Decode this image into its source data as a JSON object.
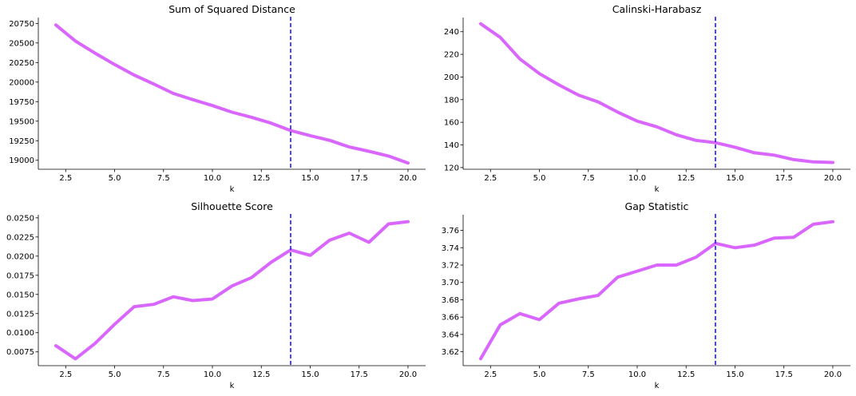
{
  "style": {
    "line_color": "#d966ff",
    "marker_line_color": "#1a1aff"
  },
  "chart_data": [
    {
      "type": "line",
      "title": "Sum of Squared Distance",
      "xlabel": "k",
      "ylabel": "",
      "x": [
        2,
        3,
        4,
        5,
        6,
        7,
        8,
        9,
        10,
        11,
        12,
        13,
        14,
        15,
        16,
        17,
        18,
        19,
        20
      ],
      "series": [
        {
          "values": [
            20730,
            20525,
            20370,
            20225,
            20090,
            19975,
            19855,
            19775,
            19700,
            19615,
            19550,
            19475,
            19380,
            19315,
            19255,
            19170,
            19115,
            19055,
            18965
          ]
        }
      ],
      "xlim": [
        1.1,
        20.9
      ],
      "ylim": [
        18885,
        20825
      ],
      "xticks": [
        2.5,
        5.0,
        7.5,
        10.0,
        12.5,
        15.0,
        17.5,
        20.0
      ],
      "xtick_labels": [
        "2.5",
        "5.0",
        "7.5",
        "10.0",
        "12.5",
        "15.0",
        "17.5",
        "20.0"
      ],
      "yticks": [
        19000,
        19250,
        19500,
        19750,
        20000,
        20250,
        20500,
        20750
      ],
      "ytick_labels": [
        "19000",
        "19250",
        "19500",
        "19750",
        "20000",
        "20250",
        "20500",
        "20750"
      ],
      "vline_x": 14,
      "grid": false
    },
    {
      "type": "line",
      "title": "Calinski-Harabasz",
      "xlabel": "k",
      "ylabel": "",
      "x": [
        2,
        3,
        4,
        5,
        6,
        7,
        8,
        9,
        10,
        11,
        12,
        13,
        14,
        15,
        16,
        17,
        18,
        19,
        20
      ],
      "series": [
        {
          "values": [
            247,
            235,
            216,
            203,
            193,
            184,
            178,
            169,
            161,
            156,
            149,
            144,
            142,
            138,
            133,
            131,
            127,
            125,
            124.5
          ]
        }
      ],
      "xlim": [
        1.1,
        20.9
      ],
      "ylim": [
        118.5,
        252.5
      ],
      "xticks": [
        2.5,
        5.0,
        7.5,
        10.0,
        12.5,
        15.0,
        17.5,
        20.0
      ],
      "xtick_labels": [
        "2.5",
        "5.0",
        "7.5",
        "10.0",
        "12.5",
        "15.0",
        "17.5",
        "20.0"
      ],
      "yticks": [
        120,
        140,
        160,
        180,
        200,
        220,
        240
      ],
      "ytick_labels": [
        "120",
        "140",
        "160",
        "180",
        "200",
        "220",
        "240"
      ],
      "vline_x": 14,
      "grid": false
    },
    {
      "type": "line",
      "title": "Silhouette Score",
      "xlabel": "k",
      "ylabel": "",
      "x": [
        2,
        3,
        4,
        5,
        6,
        7,
        8,
        9,
        10,
        11,
        12,
        13,
        14,
        15,
        16,
        17,
        18,
        19,
        20
      ],
      "series": [
        {
          "values": [
            0.0083,
            0.0066,
            0.0086,
            0.0111,
            0.0134,
            0.0137,
            0.0147,
            0.0142,
            0.0144,
            0.0161,
            0.0172,
            0.0192,
            0.0208,
            0.0201,
            0.0221,
            0.023,
            0.0218,
            0.0242,
            0.0245
          ]
        }
      ],
      "xlim": [
        1.1,
        20.9
      ],
      "ylim": [
        0.0057,
        0.0254
      ],
      "xticks": [
        2.5,
        5.0,
        7.5,
        10.0,
        12.5,
        15.0,
        17.5,
        20.0
      ],
      "xtick_labels": [
        "2.5",
        "5.0",
        "7.5",
        "10.0",
        "12.5",
        "15.0",
        "17.5",
        "20.0"
      ],
      "yticks": [
        0.0075,
        0.01,
        0.0125,
        0.015,
        0.0175,
        0.02,
        0.0225,
        0.025
      ],
      "ytick_labels": [
        "0.0075",
        "0.0100",
        "0.0125",
        "0.0150",
        "0.0175",
        "0.0200",
        "0.0225",
        "0.0250"
      ],
      "vline_x": 14,
      "grid": false
    },
    {
      "type": "line",
      "title": "Gap Statistic",
      "xlabel": "k",
      "ylabel": "",
      "x": [
        2,
        3,
        4,
        5,
        6,
        7,
        8,
        9,
        10,
        11,
        12,
        13,
        14,
        15,
        16,
        17,
        18,
        19,
        20
      ],
      "series": [
        {
          "values": [
            3.612,
            3.651,
            3.664,
            3.657,
            3.676,
            3.681,
            3.685,
            3.706,
            3.713,
            3.72,
            3.72,
            3.729,
            3.745,
            3.74,
            3.743,
            3.751,
            3.752,
            3.767,
            3.77
          ]
        }
      ],
      "xlim": [
        1.1,
        20.9
      ],
      "ylim": [
        3.604,
        3.778
      ],
      "xticks": [
        2.5,
        5.0,
        7.5,
        10.0,
        12.5,
        15.0,
        17.5,
        20.0
      ],
      "xtick_labels": [
        "2.5",
        "5.0",
        "7.5",
        "10.0",
        "12.5",
        "15.0",
        "17.5",
        "20.0"
      ],
      "yticks": [
        3.62,
        3.64,
        3.66,
        3.68,
        3.7,
        3.72,
        3.74,
        3.76
      ],
      "ytick_labels": [
        "3.62",
        "3.64",
        "3.66",
        "3.68",
        "3.70",
        "3.72",
        "3.74",
        "3.76"
      ],
      "vline_x": 14,
      "grid": false
    }
  ]
}
